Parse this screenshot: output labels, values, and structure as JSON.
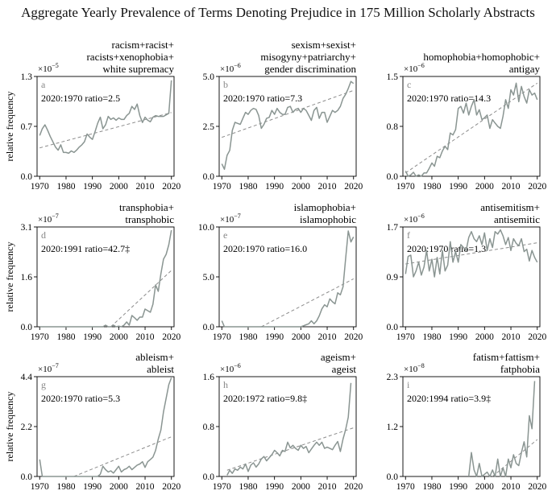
{
  "title": "Aggregate Yearly Prevalence of Terms Denoting Prejudice in 175 Million Scholarly Abstracts",
  "ylabel": "relative frequency",
  "colors": {
    "series": "#8a9592",
    "trend": "#8c8c8c",
    "axis": "#000000"
  },
  "chart_data": [
    {
      "type": "line",
      "panel": "a",
      "title_lines": [
        "racism+racist+",
        "racists+xenophobia+",
        "white supremacy"
      ],
      "multiplier": "×10",
      "exponent": "−5",
      "ratio_text": "2020:1970 ratio=2.5",
      "xlim": [
        1969,
        2021
      ],
      "ylim": [
        0,
        1.3
      ],
      "xticks": [
        1970,
        1980,
        1990,
        2000,
        2010,
        2020
      ],
      "yticks": [
        "0.0",
        "0.7",
        "1.3"
      ],
      "x_start": 1970,
      "values": [
        0.53,
        0.62,
        0.67,
        0.6,
        0.52,
        0.45,
        0.38,
        0.34,
        0.41,
        0.31,
        0.31,
        0.3,
        0.33,
        0.31,
        0.34,
        0.38,
        0.41,
        0.45,
        0.55,
        0.51,
        0.48,
        0.58,
        0.69,
        0.77,
        0.62,
        0.67,
        0.78,
        0.74,
        0.76,
        0.73,
        0.76,
        0.74,
        0.74,
        0.79,
        0.82,
        0.91,
        0.87,
        0.94,
        0.79,
        0.7,
        0.77,
        0.73,
        0.71,
        0.77,
        0.79,
        0.78,
        0.78,
        0.78,
        0.8,
        0.82,
        1.25
      ],
      "trend": [
        [
          1970,
          0.37
        ],
        [
          2020,
          0.83
        ]
      ]
    },
    {
      "type": "line",
      "panel": "b",
      "title_lines": [
        "sexism+sexist+",
        "misogyny+patriarchy+",
        "gender discrimination"
      ],
      "multiplier": "×10",
      "exponent": "−6",
      "ratio_text": "2020:1970 ratio=7.3",
      "xlim": [
        1969,
        2021
      ],
      "ylim": [
        0,
        5.0
      ],
      "xticks": [
        1970,
        1980,
        1990,
        2000,
        2010,
        2020
      ],
      "yticks": [
        "0.0",
        "2.5",
        "5.0"
      ],
      "x_start": 1970,
      "values": [
        0.62,
        0.35,
        1.05,
        1.3,
        2.3,
        2.7,
        2.65,
        2.6,
        2.9,
        3.2,
        3.1,
        3.3,
        3.4,
        3.35,
        3.05,
        2.4,
        2.6,
        2.9,
        2.95,
        3.3,
        3.1,
        3.4,
        3.2,
        3.1,
        3.1,
        3.45,
        3.5,
        3.2,
        3.35,
        3.4,
        3.2,
        3.4,
        3.3,
        3.05,
        2.8,
        3.3,
        3.45,
        2.9,
        3.2,
        3.2,
        2.7,
        3.0,
        3.3,
        3.2,
        3.3,
        3.5,
        3.9,
        4.1,
        4.4,
        4.75,
        4.65
      ],
      "trend": [
        [
          1970,
          1.95
        ],
        [
          2020,
          4.3
        ]
      ]
    },
    {
      "type": "line",
      "panel": "c",
      "title_lines": [
        "homophobia+homophobic+",
        "antigay"
      ],
      "multiplier": "×10",
      "exponent": "−6",
      "ratio_text": "2020:1970 ratio=14.3",
      "xlim": [
        1969,
        2021
      ],
      "ylim": [
        0,
        1.5
      ],
      "xticks": [
        1970,
        1980,
        1990,
        2000,
        2010,
        2020
      ],
      "yticks": [
        "0.0",
        "0.8",
        "1.5"
      ],
      "x_start": 1970,
      "values": [
        0.08,
        0.0,
        0.02,
        0.06,
        0.0,
        0.02,
        0.0,
        0.05,
        0.05,
        0.12,
        0.2,
        0.15,
        0.3,
        0.28,
        0.38,
        0.45,
        0.4,
        0.65,
        0.62,
        0.7,
        1.02,
        1.05,
        0.95,
        1.1,
        0.92,
        1.05,
        1.15,
        0.92,
        1.0,
        0.85,
        0.88,
        0.92,
        0.72,
        0.85,
        0.8,
        0.75,
        0.72,
        0.9,
        1.15,
        1.02,
        1.3,
        1.22,
        1.4,
        1.12,
        1.35,
        1.2,
        1.1,
        1.3,
        1.22,
        1.25,
        1.15
      ],
      "trend": [
        [
          1970,
          0.05
        ],
        [
          2020,
          1.4
        ]
      ]
    },
    {
      "type": "line",
      "panel": "d",
      "title_lines": [
        "transphobia+",
        "transphobic"
      ],
      "multiplier": "×10",
      "exponent": "−7",
      "ratio_text": "2020:1991 ratio=42.7‡",
      "xlim": [
        1969,
        2021
      ],
      "ylim": [
        0,
        3.1
      ],
      "xticks": [
        1970,
        1980,
        1990,
        2000,
        2010,
        2020
      ],
      "yticks": [
        "0.0",
        "1.6",
        "3.1"
      ],
      "x_start": 1970,
      "values": [
        0,
        0,
        0,
        0,
        0,
        0,
        0,
        0,
        0,
        0,
        0,
        0,
        0,
        0,
        0,
        0,
        0,
        0,
        0,
        0,
        0,
        0,
        0,
        0,
        0,
        0.05,
        0,
        0,
        0.05,
        0,
        0.02,
        0,
        0.05,
        0.15,
        0.05,
        0.35,
        0.28,
        0.2,
        0.3,
        0.3,
        0.55,
        0.5,
        0.45,
        0.7,
        1.3,
        1.1,
        1.65,
        2.1,
        2.25,
        2.55,
        3.0
      ],
      "trend": [
        [
          1997,
          0.0
        ],
        [
          2020,
          1.75
        ]
      ]
    },
    {
      "type": "line",
      "panel": "e",
      "title_lines": [
        "islamophobia+",
        "islamophobic"
      ],
      "multiplier": "×10",
      "exponent": "−7",
      "ratio_text": "2020:1970 ratio=16.0",
      "xlim": [
        1969,
        2021
      ],
      "ylim": [
        0,
        10.0
      ],
      "xticks": [
        1970,
        1980,
        1990,
        2000,
        2010,
        2020
      ],
      "yticks": [
        "0.0",
        "5.0",
        "10.0"
      ],
      "x_start": 1970,
      "values": [
        0.6,
        0,
        0,
        0,
        0,
        0,
        0,
        0,
        0,
        0,
        0,
        0,
        0,
        0,
        0,
        0,
        0,
        0,
        0,
        0,
        0,
        0,
        0,
        0,
        0,
        0,
        0,
        0,
        0,
        0,
        0,
        0.1,
        0.2,
        0.3,
        0.6,
        0.3,
        0.6,
        1.1,
        1.8,
        2.2,
        2.0,
        2.8,
        2.5,
        2.3,
        3.4,
        3.2,
        4.0,
        6.8,
        9.6,
        8.5,
        9.0
      ],
      "trend": [
        [
          1985,
          0.0
        ],
        [
          2020,
          4.8
        ]
      ]
    },
    {
      "type": "line",
      "panel": "f",
      "title_lines": [
        "antisemitism+",
        "antisemitic"
      ],
      "multiplier": "×10",
      "exponent": "−6",
      "ratio_text": "2020:1970 ratio=1.3",
      "xlim": [
        1969,
        2021
      ],
      "ylim": [
        0,
        1.7
      ],
      "xticks": [
        1970,
        1980,
        1990,
        2000,
        2010,
        2020
      ],
      "yticks": [
        "0.0",
        "0.9",
        "1.7"
      ],
      "x_start": 1970,
      "values": [
        0.9,
        1.2,
        1.22,
        0.85,
        0.95,
        1.1,
        0.88,
        1.02,
        1.3,
        0.95,
        1.15,
        0.85,
        1.18,
        0.9,
        1.3,
        0.95,
        1.05,
        1.45,
        1.1,
        1.28,
        1.1,
        1.4,
        1.35,
        1.3,
        1.52,
        1.62,
        1.5,
        1.45,
        1.55,
        1.4,
        1.6,
        1.3,
        1.5,
        1.35,
        1.62,
        1.58,
        1.65,
        1.55,
        1.4,
        1.52,
        1.3,
        1.5,
        1.42,
        1.38,
        1.5,
        1.28,
        1.32,
        1.12,
        1.3,
        1.18,
        1.1
      ],
      "trend": [
        [
          1970,
          1.07
        ],
        [
          2020,
          1.43
        ]
      ]
    },
    {
      "type": "line",
      "panel": "g",
      "title_lines": [
        "ableism+",
        "ableist"
      ],
      "multiplier": "×10",
      "exponent": "−7",
      "ratio_text": "2020:1970 ratio=5.3",
      "xlim": [
        1969,
        2021
      ],
      "ylim": [
        0,
        4.4
      ],
      "xticks": [
        1970,
        1980,
        1990,
        2000,
        2010,
        2020
      ],
      "yticks": [
        "0.0",
        "2.2",
        "4.4"
      ],
      "x_start": 1970,
      "values": [
        0.75,
        0.0,
        0,
        0,
        0,
        0,
        0,
        0,
        0,
        0,
        0,
        0,
        0,
        0,
        0,
        0,
        0,
        0,
        0,
        0,
        0,
        0,
        0,
        0.1,
        0.45,
        0.3,
        0.2,
        0.25,
        0.15,
        0.3,
        0.45,
        0.2,
        0.3,
        0.35,
        0.45,
        0.3,
        0.4,
        0.5,
        0.55,
        0.65,
        0.4,
        0.65,
        0.75,
        0.85,
        1.15,
        1.65,
        2.05,
        2.85,
        3.45,
        4.05,
        4.35
      ],
      "trend": [
        [
          1983,
          0.0
        ],
        [
          2020,
          1.75
        ]
      ]
    },
    {
      "type": "line",
      "panel": "h",
      "title_lines": [
        "ageism+",
        "ageist"
      ],
      "multiplier": "×10",
      "exponent": "−6",
      "ratio_text": "2020:1972 ratio=9.8‡",
      "xlim": [
        1969,
        2021
      ],
      "ylim": [
        0,
        1.6
      ],
      "xticks": [
        1970,
        1980,
        1990,
        2000,
        2010,
        2020
      ],
      "yticks": [
        "0.0",
        "0.8",
        "1.6"
      ],
      "x_start": 1972,
      "values": [
        0.02,
        0.1,
        0.05,
        0.12,
        0.1,
        0.15,
        0.12,
        0.2,
        0.08,
        0.18,
        0.22,
        0.15,
        0.2,
        0.28,
        0.32,
        0.25,
        0.3,
        0.35,
        0.42,
        0.38,
        0.33,
        0.42,
        0.4,
        0.55,
        0.46,
        0.5,
        0.45,
        0.42,
        0.5,
        0.45,
        0.48,
        0.38,
        0.44,
        0.5,
        0.55,
        0.5,
        0.55,
        0.45,
        0.47,
        0.45,
        0.43,
        0.5,
        0.56,
        0.4,
        0.6,
        0.75,
        0.95,
        1.5
      ],
      "trend": [
        [
          1972,
          0.1
        ],
        [
          2020,
          0.78
        ]
      ]
    },
    {
      "type": "line",
      "panel": "i",
      "title_lines": [
        "fatism+fattism+",
        "fatphobia"
      ],
      "multiplier": "×10",
      "exponent": "−8",
      "ratio_text": "2020:1994 ratio=3.9‡",
      "xlim": [
        1969,
        2021
      ],
      "ylim": [
        0,
        2.3
      ],
      "xticks": [
        1970,
        1980,
        1990,
        2000,
        2010,
        2020
      ],
      "yticks": [
        "0.0",
        "1.2",
        "2.3"
      ],
      "x_start": 1994,
      "values": [
        0.0,
        0.55,
        0.15,
        0.0,
        0.3,
        0.0,
        0.05,
        0.1,
        0.0,
        0.15,
        0.0,
        0.4,
        0.0,
        0.2,
        0.0,
        0.4,
        0.2,
        0.5,
        0.3,
        0.25,
        0.55,
        0.8,
        0.45,
        1.4,
        1.1,
        2.2
      ],
      "trend": [
        [
          2003,
          0.0
        ],
        [
          2020,
          0.85
        ]
      ]
    }
  ]
}
